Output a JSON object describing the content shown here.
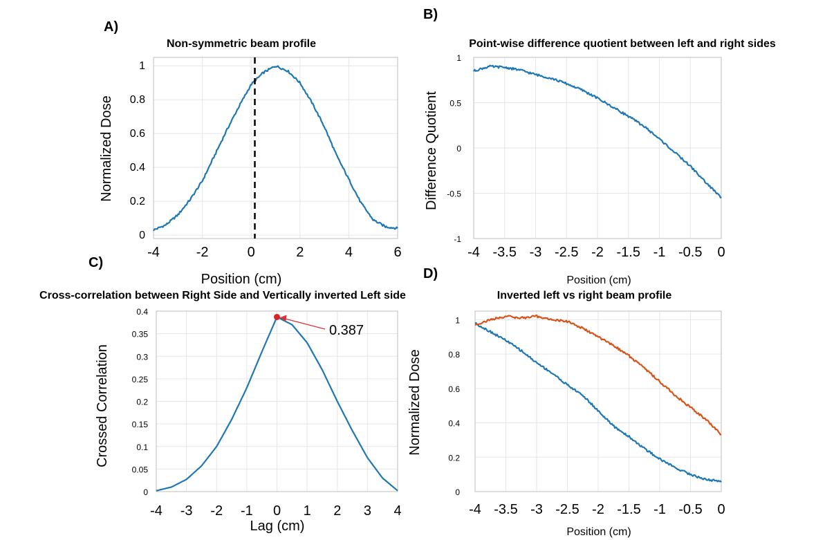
{
  "colors": {
    "blue": "#1f77b4",
    "orange": "#d95319",
    "marker": "#d62728",
    "arrow": "#e03030"
  },
  "panels": {
    "A": {
      "letter": "A)"
    },
    "B": {
      "letter": "B)"
    },
    "C": {
      "letter": "C)"
    },
    "D": {
      "letter": "D)"
    }
  },
  "chart_data": [
    {
      "id": "A",
      "type": "line",
      "title": "Non-symmetric beam profile",
      "xlabel": "Position (cm)",
      "ylabel": "Normalized Dose",
      "xlim": [
        -4,
        6
      ],
      "ylim": [
        -0.02,
        1.05
      ],
      "xticks": [
        -4,
        -2,
        0,
        2,
        4,
        6
      ],
      "xtick_labels": [
        "-4",
        "-2",
        "0",
        "2",
        "4",
        "6"
      ],
      "yticks": [
        0,
        0.2,
        0.4,
        0.6,
        0.8,
        1
      ],
      "ytick_labels": [
        "0",
        "0.2",
        "0.4",
        "0.6",
        "0.8",
        "1"
      ],
      "grid": true,
      "vline": {
        "x": 0.15,
        "style": "dashed"
      },
      "series": [
        {
          "color_key": "blue",
          "x": [
            -4,
            -3.5,
            -3,
            -2.5,
            -2,
            -1.5,
            -1,
            -0.5,
            0,
            0.5,
            1,
            1.5,
            2,
            2.5,
            3,
            3.5,
            4,
            4.5,
            5,
            5.5,
            6
          ],
          "y": [
            0.03,
            0.06,
            0.12,
            0.21,
            0.32,
            0.47,
            0.62,
            0.76,
            0.89,
            0.96,
            1.0,
            0.97,
            0.9,
            0.78,
            0.64,
            0.47,
            0.33,
            0.19,
            0.09,
            0.05,
            0.04
          ]
        }
      ]
    },
    {
      "id": "B",
      "type": "line",
      "title": "Point-wise difference quotient between left and right sides",
      "xlabel": "Position (cm)",
      "ylabel": "Difference Quotient",
      "xlim": [
        -4,
        0
      ],
      "ylim": [
        -1,
        1
      ],
      "xticks": [
        -4,
        -3.5,
        -3,
        -2.5,
        -2,
        -1.5,
        -1,
        -0.5,
        0
      ],
      "xtick_labels": [
        "-4",
        "-3.5",
        "-3",
        "-2.5",
        "-2",
        "-1.5",
        "-1",
        "-0.5",
        "0"
      ],
      "yticks": [
        -1,
        -0.5,
        0,
        0.5,
        1
      ],
      "ytick_labels": [
        "-1",
        "-0.5",
        "0",
        "0.5",
        "1"
      ],
      "grid": true,
      "series": [
        {
          "color_key": "blue",
          "x": [
            -4,
            -3.75,
            -3.5,
            -3.25,
            -3,
            -2.75,
            -2.5,
            -2.25,
            -2,
            -1.75,
            -1.5,
            -1.25,
            -1,
            -0.75,
            -0.5,
            -0.25,
            0
          ],
          "y": [
            0.85,
            0.9,
            0.89,
            0.86,
            0.81,
            0.77,
            0.71,
            0.64,
            0.55,
            0.45,
            0.35,
            0.24,
            0.1,
            -0.05,
            -0.2,
            -0.38,
            -0.55
          ]
        }
      ]
    },
    {
      "id": "C",
      "type": "line",
      "title": "Cross-correlation between Right Side and Vertically inverted Left side",
      "xlabel": "Lag (cm)",
      "ylabel": "Crossed Correlation",
      "xlim": [
        -4,
        4
      ],
      "ylim": [
        0,
        0.4
      ],
      "xticks": [
        -4,
        -3,
        -2,
        -1,
        0,
        1,
        2,
        3,
        4
      ],
      "xtick_labels": [
        "-4",
        "-3",
        "-2",
        "-1",
        "0",
        "1",
        "2",
        "3",
        "4"
      ],
      "yticks": [
        0,
        0.05,
        0.1,
        0.15,
        0.2,
        0.25,
        0.3,
        0.35,
        0.4
      ],
      "ytick_labels": [
        "0",
        "0.05",
        "0.1",
        "0.15",
        "0.2",
        "0.25",
        "0.3",
        "0.35",
        "0.4"
      ],
      "grid": true,
      "peak": {
        "x": 0,
        "y": 0.387,
        "label": "0.387"
      },
      "series": [
        {
          "color_key": "blue",
          "x": [
            -4,
            -3.5,
            -3,
            -2.5,
            -2,
            -1.5,
            -1,
            -0.5,
            0,
            0.5,
            1,
            1.5,
            2,
            2.5,
            3,
            3.5,
            4
          ],
          "y": [
            0.002,
            0.01,
            0.027,
            0.057,
            0.1,
            0.16,
            0.23,
            0.31,
            0.387,
            0.37,
            0.33,
            0.27,
            0.2,
            0.135,
            0.075,
            0.03,
            0.002
          ]
        }
      ]
    },
    {
      "id": "D",
      "type": "line",
      "title": "Inverted left vs right beam profile",
      "xlabel": "Position (cm)",
      "ylabel": "Normalized Dose",
      "xlim": [
        -4,
        0
      ],
      "ylim": [
        0,
        1.05
      ],
      "xticks": [
        -4,
        -3.5,
        -3,
        -2.5,
        -2,
        -1.5,
        -1,
        -0.5,
        0
      ],
      "xtick_labels": [
        "-4",
        "-3.5",
        "-3",
        "-2.5",
        "-2",
        "-1.5",
        "-1",
        "-0.5",
        "0"
      ],
      "yticks": [
        0,
        0.2,
        0.4,
        0.6,
        0.8,
        1
      ],
      "ytick_labels": [
        "0",
        "0.2",
        "0.4",
        "0.6",
        "0.8",
        "1"
      ],
      "grid": true,
      "series": [
        {
          "color_key": "blue",
          "x": [
            -4,
            -3.75,
            -3.5,
            -3.25,
            -3,
            -2.75,
            -2.5,
            -2.25,
            -2,
            -1.75,
            -1.5,
            -1.25,
            -1,
            -0.75,
            -0.5,
            -0.25,
            0
          ],
          "y": [
            0.98,
            0.93,
            0.88,
            0.82,
            0.75,
            0.69,
            0.62,
            0.56,
            0.47,
            0.38,
            0.32,
            0.25,
            0.19,
            0.14,
            0.1,
            0.07,
            0.06
          ]
        },
        {
          "color_key": "orange",
          "x": [
            -4,
            -3.75,
            -3.5,
            -3.25,
            -3,
            -2.75,
            -2.5,
            -2.25,
            -2,
            -1.75,
            -1.5,
            -1.25,
            -1,
            -0.75,
            -0.5,
            -0.25,
            0
          ],
          "y": [
            0.97,
            1.0,
            1.02,
            1.01,
            1.02,
            1.0,
            0.99,
            0.95,
            0.9,
            0.85,
            0.79,
            0.72,
            0.64,
            0.56,
            0.49,
            0.42,
            0.33
          ]
        }
      ]
    }
  ]
}
